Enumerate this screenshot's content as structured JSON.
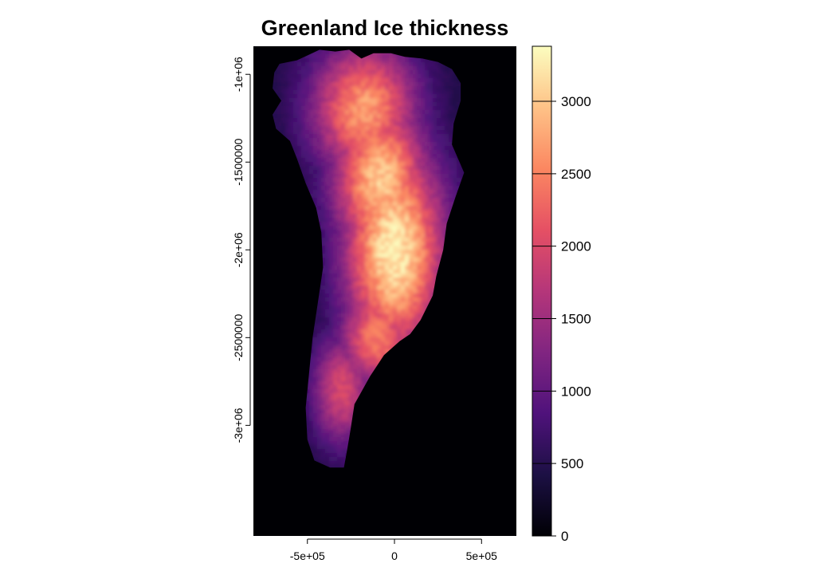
{
  "chart_data": {
    "type": "heatmap",
    "title": "Greenland Ice thickness",
    "xlabel": "",
    "ylabel": "",
    "xlim": [
      -810000,
      700000
    ],
    "ylim": [
      -3630000,
      -840000
    ],
    "x_ticks": [
      {
        "value": -500000,
        "label": "-5e+05"
      },
      {
        "value": 0,
        "label": "0"
      },
      {
        "value": 500000,
        "label": "5e+05"
      }
    ],
    "y_ticks": [
      {
        "value": -1000000,
        "label": "-1e+06"
      },
      {
        "value": -1500000,
        "label": "-1500000"
      },
      {
        "value": -2000000,
        "label": "-2e+06"
      },
      {
        "value": -2500000,
        "label": "-2500000"
      },
      {
        "value": -3000000,
        "label": "-3e+06"
      }
    ],
    "colorbar": {
      "range": [
        0,
        3380
      ],
      "ticks": [
        {
          "value": 0,
          "label": "0"
        },
        {
          "value": 500,
          "label": "500"
        },
        {
          "value": 1000,
          "label": "1000"
        },
        {
          "value": 1500,
          "label": "1500"
        },
        {
          "value": 2000,
          "label": "2000"
        },
        {
          "value": 2500,
          "label": "2500"
        },
        {
          "value": 3000,
          "label": "3000"
        }
      ]
    },
    "colormap": [
      "#000004",
      "#1c1044",
      "#4f127b",
      "#812581",
      "#b5367a",
      "#e55064",
      "#fb8761",
      "#fec287",
      "#fcfdbf"
    ],
    "background_color": "#000004",
    "outline": [
      [
        -660000,
        -940000
      ],
      [
        -560000,
        -920000
      ],
      [
        -430000,
        -860000
      ],
      [
        -340000,
        -870000
      ],
      [
        -260000,
        -860000
      ],
      [
        -190000,
        -910000
      ],
      [
        -120000,
        -880000
      ],
      [
        -20000,
        -880000
      ],
      [
        60000,
        -900000
      ],
      [
        160000,
        -910000
      ],
      [
        250000,
        -930000
      ],
      [
        330000,
        -970000
      ],
      [
        380000,
        -1050000
      ],
      [
        380000,
        -1150000
      ],
      [
        340000,
        -1280000
      ],
      [
        330000,
        -1400000
      ],
      [
        400000,
        -1560000
      ],
      [
        350000,
        -1700000
      ],
      [
        300000,
        -1850000
      ],
      [
        280000,
        -2000000
      ],
      [
        240000,
        -2150000
      ],
      [
        220000,
        -2260000
      ],
      [
        150000,
        -2400000
      ],
      [
        90000,
        -2480000
      ],
      [
        30000,
        -2520000
      ],
      [
        -60000,
        -2600000
      ],
      [
        -140000,
        -2720000
      ],
      [
        -230000,
        -2880000
      ],
      [
        -250000,
        -3010000
      ],
      [
        -270000,
        -3130000
      ],
      [
        -290000,
        -3240000
      ],
      [
        -370000,
        -3240000
      ],
      [
        -460000,
        -3200000
      ],
      [
        -500000,
        -3080000
      ],
      [
        -510000,
        -2900000
      ],
      [
        -490000,
        -2700000
      ],
      [
        -470000,
        -2500000
      ],
      [
        -440000,
        -2300000
      ],
      [
        -410000,
        -2100000
      ],
      [
        -420000,
        -1900000
      ],
      [
        -450000,
        -1760000
      ],
      [
        -510000,
        -1620000
      ],
      [
        -560000,
        -1480000
      ],
      [
        -600000,
        -1380000
      ],
      [
        -680000,
        -1310000
      ],
      [
        -700000,
        -1230000
      ],
      [
        -650000,
        -1150000
      ],
      [
        -700000,
        -1080000
      ],
      [
        -690000,
        -990000
      ]
    ],
    "thickness_field": {
      "base": 400,
      "peaks": [
        {
          "x": 0,
          "y": -2000000,
          "value": 3300,
          "sx": 200000,
          "sy": 420000
        },
        {
          "x": -80000,
          "y": -1600000,
          "value": 3000,
          "sx": 190000,
          "sy": 320000
        },
        {
          "x": -170000,
          "y": -1200000,
          "value": 2700,
          "sx": 210000,
          "sy": 260000
        },
        {
          "x": -100000,
          "y": -2500000,
          "value": 2500,
          "sx": 150000,
          "sy": 200000
        },
        {
          "x": -300000,
          "y": -2800000,
          "value": 2000,
          "sx": 120000,
          "sy": 220000
        }
      ]
    }
  }
}
